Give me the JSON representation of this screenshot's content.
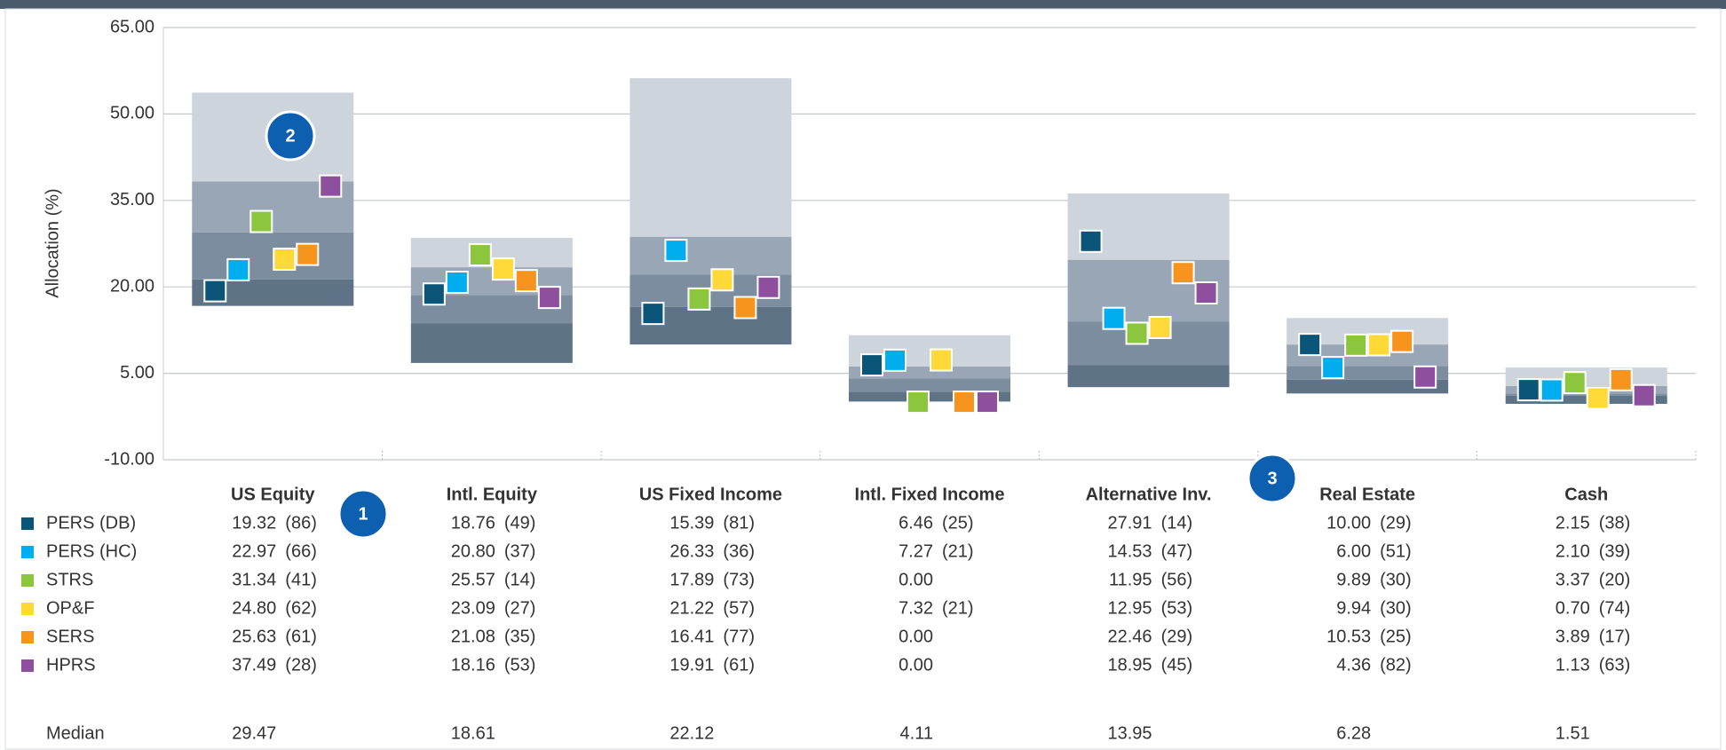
{
  "chart_data": {
    "type": "floating-box",
    "y_label": "Allocation (%)",
    "categories": [
      "US Equity",
      "Intl. Equity",
      "US Fixed Income",
      "Intl. Fixed Income",
      "Alternative Inv.",
      "Real Estate",
      "Cash"
    ],
    "ylim": [
      -10,
      65
    ],
    "yticks": [
      {
        "value": -10,
        "label": "-10.00"
      },
      {
        "value": 5,
        "label": "5.00"
      },
      {
        "value": 20,
        "label": "20.00"
      },
      {
        "value": 35,
        "label": "35.00"
      },
      {
        "value": 50,
        "label": "50.00"
      },
      {
        "value": 65,
        "label": "65.00"
      }
    ],
    "grid": true,
    "bands": {
      "p5": [
        16.7,
        6.8,
        10.0,
        0.1,
        2.6,
        1.5,
        -0.3
      ],
      "p25": [
        21.3,
        13.7,
        16.5,
        1.8,
        6.4,
        3.9,
        1.1
      ],
      "p75": [
        38.3,
        23.4,
        28.7,
        6.2,
        24.7,
        10.0,
        2.8
      ],
      "p95": [
        53.7,
        28.5,
        56.2,
        11.6,
        36.2,
        14.6,
        6.0
      ],
      "colors": [
        "#5f7387",
        "#7b8d9f",
        "#98a6b5",
        "#cdd4dc"
      ]
    },
    "series": [
      {
        "name": "PERS (DB)",
        "color": "#0b5678",
        "values": [
          19.32,
          18.76,
          15.39,
          6.46,
          27.91,
          10.0,
          2.15
        ],
        "value_labels": [
          "19.32",
          "18.76",
          "15.39",
          "6.46",
          "27.91",
          "10.00",
          "2.15"
        ],
        "ranks": [
          "(86)",
          "(49)",
          "(81)",
          "(25)",
          "(14)",
          "(29)",
          "(38)"
        ]
      },
      {
        "name": "PERS (HC)",
        "color": "#00aeef",
        "values": [
          22.97,
          20.8,
          26.33,
          7.27,
          14.53,
          6.0,
          2.1
        ],
        "value_labels": [
          "22.97",
          "20.80",
          "26.33",
          "7.27",
          "14.53",
          "6.00",
          "2.10"
        ],
        "ranks": [
          "(66)",
          "(37)",
          "(36)",
          "(21)",
          "(47)",
          "(51)",
          "(39)"
        ]
      },
      {
        "name": "STRS",
        "color": "#8cc63f",
        "values": [
          31.34,
          25.57,
          17.89,
          0.0,
          11.95,
          9.89,
          3.37
        ],
        "value_labels": [
          "31.34",
          "25.57",
          "17.89",
          "0.00",
          "11.95",
          "9.89",
          "3.37"
        ],
        "ranks": [
          "(41)",
          "(14)",
          "(73)",
          null,
          "(56)",
          "(30)",
          "(20)"
        ]
      },
      {
        "name": "OP&F",
        "color": "#ffd938",
        "values": [
          24.8,
          23.09,
          21.22,
          7.32,
          12.95,
          9.94,
          0.7
        ],
        "value_labels": [
          "24.80",
          "23.09",
          "21.22",
          "7.32",
          "12.95",
          "9.94",
          "0.70"
        ],
        "ranks": [
          "(62)",
          "(27)",
          "(57)",
          "(21)",
          "(53)",
          "(30)",
          "(74)"
        ]
      },
      {
        "name": "SERS",
        "color": "#f7941d",
        "values": [
          25.63,
          21.08,
          16.41,
          0.0,
          22.46,
          10.53,
          3.89
        ],
        "value_labels": [
          "25.63",
          "21.08",
          "16.41",
          "0.00",
          "22.46",
          "10.53",
          "3.89"
        ],
        "ranks": [
          "(61)",
          "(35)",
          "(77)",
          null,
          "(29)",
          "(25)",
          "(17)"
        ]
      },
      {
        "name": "HPRS",
        "color": "#8e4f9f",
        "values": [
          37.49,
          18.16,
          19.91,
          0.0,
          18.95,
          4.36,
          1.13
        ],
        "value_labels": [
          "37.49",
          "18.16",
          "19.91",
          "0.00",
          "18.95",
          "4.36",
          "1.13"
        ],
        "ranks": [
          "(28)",
          "(53)",
          "(61)",
          null,
          "(45)",
          "(82)",
          "(63)"
        ]
      }
    ],
    "median_label": "Median",
    "medians": [
      29.47,
      18.61,
      22.12,
      4.11,
      13.95,
      6.28,
      1.51
    ],
    "badges": [
      "1",
      "2",
      "3"
    ]
  }
}
